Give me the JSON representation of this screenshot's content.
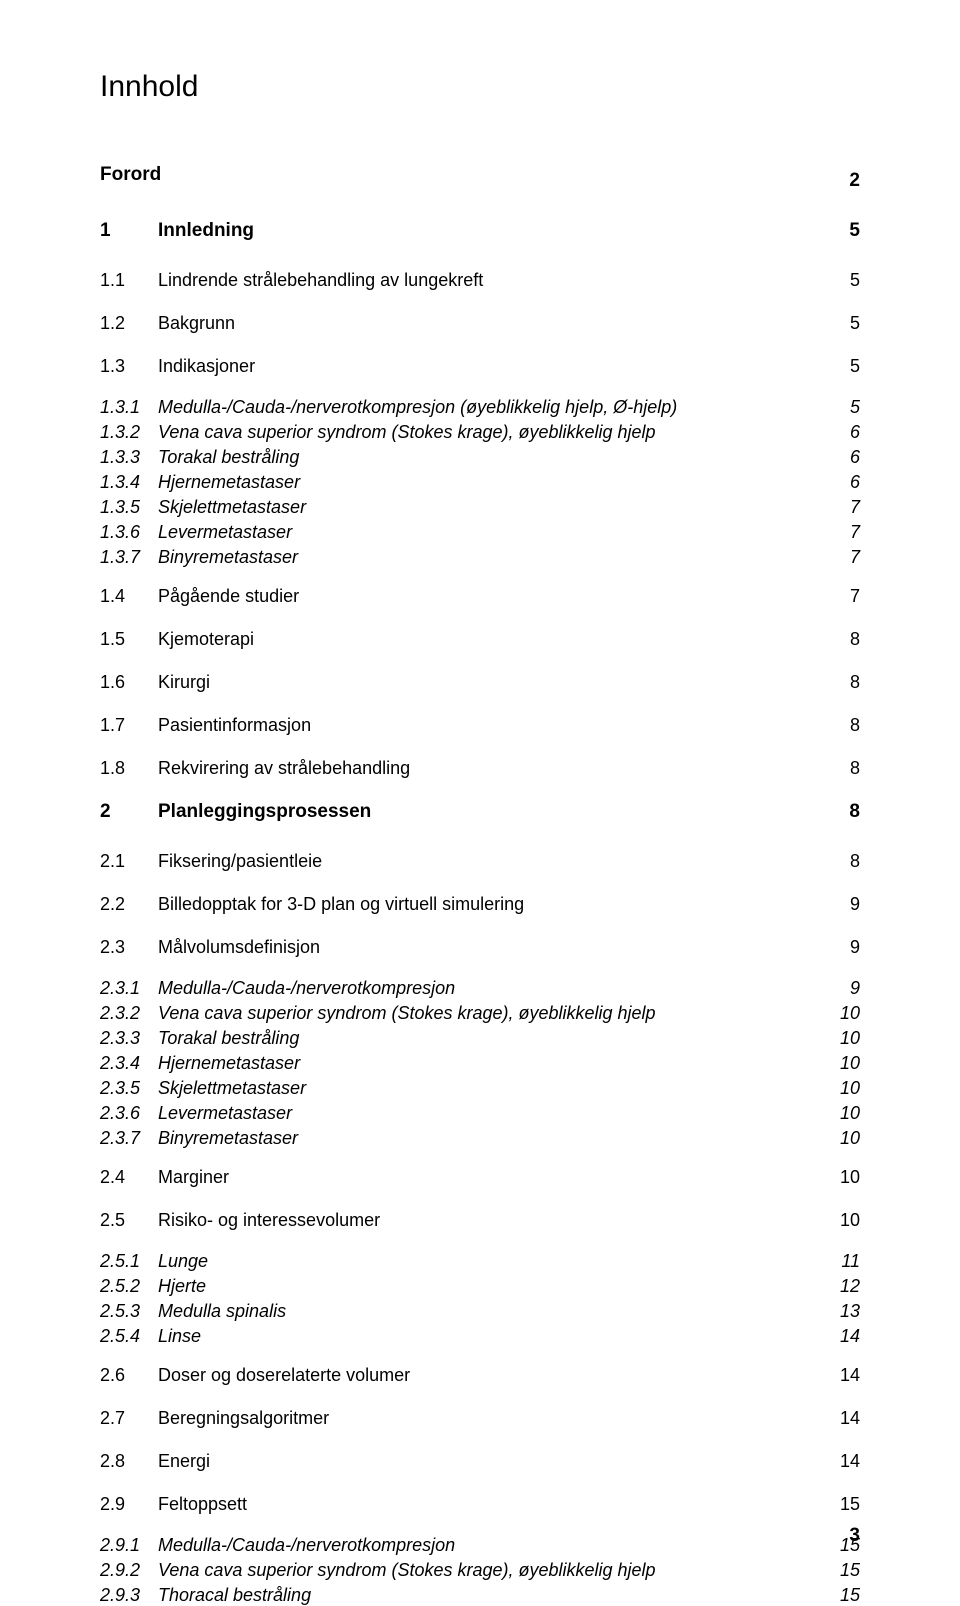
{
  "title": "Innhold",
  "footer_page": "3",
  "entries": [
    {
      "level": 0,
      "num": "",
      "label": "Forord",
      "page": "2"
    },
    {
      "level": 1,
      "num": "1",
      "label": "Innledning",
      "page": "5"
    },
    {
      "level": 2,
      "num": "1.1",
      "label": "Lindrende strålebehandling av lungekreft",
      "page": "5"
    },
    {
      "level": 2,
      "num": "1.2",
      "label": "Bakgrunn",
      "page": "5"
    },
    {
      "level": 2,
      "num": "1.3",
      "label": "Indikasjoner",
      "page": "5"
    },
    {
      "level": 3,
      "num": "1.3.1",
      "label": "Medulla-/Cauda-/nerverotkompresjon (øyeblikkelig hjelp, Ø-hjelp)",
      "page": "5",
      "group": "g1"
    },
    {
      "level": 3,
      "num": "1.3.2",
      "label": "Vena cava superior syndrom (Stokes krage), øyeblikkelig hjelp",
      "page": "6",
      "group": "g1"
    },
    {
      "level": 3,
      "num": "1.3.3",
      "label": "Torakal bestråling",
      "page": "6",
      "group": "g1"
    },
    {
      "level": 3,
      "num": "1.3.4",
      "label": "Hjernemetastaser",
      "page": "6",
      "group": "g1"
    },
    {
      "level": 3,
      "num": "1.3.5",
      "label": "Skjelettmetastaser",
      "page": "7",
      "group": "g1"
    },
    {
      "level": 3,
      "num": "1.3.6",
      "label": "Levermetastaser",
      "page": "7",
      "group": "g1"
    },
    {
      "level": 3,
      "num": "1.3.7",
      "label": "Binyremetastaser",
      "page": "7",
      "group": "g1"
    },
    {
      "level": 2,
      "num": "1.4",
      "label": "Pågående studier",
      "page": "7"
    },
    {
      "level": 2,
      "num": "1.5",
      "label": "Kjemoterapi",
      "page": "8"
    },
    {
      "level": 2,
      "num": "1.6",
      "label": "Kirurgi",
      "page": "8"
    },
    {
      "level": 2,
      "num": "1.7",
      "label": "Pasientinformasjon",
      "page": "8"
    },
    {
      "level": 2,
      "num": "1.8",
      "label": "Rekvirering av strålebehandling",
      "page": "8"
    },
    {
      "level": 1,
      "num": "2",
      "label": "Planleggingsprosessen",
      "page": "8"
    },
    {
      "level": 2,
      "num": "2.1",
      "label": "Fiksering/pasientleie",
      "page": "8"
    },
    {
      "level": 2,
      "num": "2.2",
      "label": "Billedopptak for 3-D plan og virtuell simulering",
      "page": "9"
    },
    {
      "level": 2,
      "num": "2.3",
      "label": "Målvolumsdefinisjon",
      "page": "9"
    },
    {
      "level": 3,
      "num": "2.3.1",
      "label": "Medulla-/Cauda-/nerverotkompresjon",
      "page": "9",
      "group": "g2"
    },
    {
      "level": 3,
      "num": "2.3.2",
      "label": "Vena cava superior syndrom (Stokes krage), øyeblikkelig hjelp",
      "page": "10",
      "group": "g2"
    },
    {
      "level": 3,
      "num": "2.3.3",
      "label": "Torakal bestråling",
      "page": "10",
      "group": "g2"
    },
    {
      "level": 3,
      "num": "2.3.4",
      "label": "Hjernemetastaser",
      "page": "10",
      "group": "g2"
    },
    {
      "level": 3,
      "num": "2.3.5",
      "label": "Skjelettmetastaser",
      "page": "10",
      "group": "g2"
    },
    {
      "level": 3,
      "num": "2.3.6",
      "label": "Levermetastaser",
      "page": "10",
      "group": "g2"
    },
    {
      "level": 3,
      "num": "2.3.7",
      "label": "Binyremetastaser",
      "page": "10",
      "group": "g2"
    },
    {
      "level": 2,
      "num": "2.4",
      "label": "Marginer",
      "page": "10"
    },
    {
      "level": 2,
      "num": "2.5",
      "label": "Risiko- og interessevolumer",
      "page": "10"
    },
    {
      "level": 3,
      "num": "2.5.1",
      "label": "Lunge",
      "page": "11",
      "group": "g3"
    },
    {
      "level": 3,
      "num": "2.5.2",
      "label": "Hjerte",
      "page": "12",
      "group": "g3"
    },
    {
      "level": 3,
      "num": "2.5.3",
      "label": "Medulla spinalis",
      "page": "13",
      "group": "g3"
    },
    {
      "level": 3,
      "num": "2.5.4",
      "label": "Linse",
      "page": "14",
      "group": "g3"
    },
    {
      "level": 2,
      "num": "2.6",
      "label": "Doser og doserelaterte volumer",
      "page": "14"
    },
    {
      "level": 2,
      "num": "2.7",
      "label": "Beregningsalgoritmer",
      "page": "14"
    },
    {
      "level": 2,
      "num": "2.8",
      "label": "Energi",
      "page": "14"
    },
    {
      "level": 2,
      "num": "2.9",
      "label": "Feltoppsett",
      "page": "15"
    },
    {
      "level": 3,
      "num": "2.9.1",
      "label": "Medulla-/Cauda-/nerverotkompresjon",
      "page": "15",
      "group": "g4"
    },
    {
      "level": 3,
      "num": "2.9.2",
      "label": "Vena cava superior syndrom (Stokes krage), øyeblikkelig hjelp",
      "page": "15",
      "group": "g4"
    },
    {
      "level": 3,
      "num": "2.9.3",
      "label": "Thoracal bestråling",
      "page": "15",
      "group": "g4"
    }
  ]
}
